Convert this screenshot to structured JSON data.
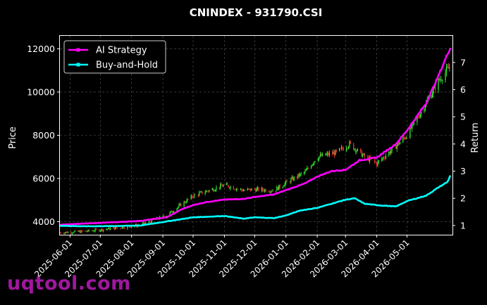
{
  "chart_data": {
    "type": "line",
    "title": "CNINDEX - 931790.CSI",
    "ylabel_left": "Price",
    "ylabel_right": "Return",
    "x_ticks": [
      "2025-06-01",
      "2025-07-01",
      "2025-08-01",
      "2025-09-01",
      "2025-10-01",
      "2025-11-01",
      "2025-12-01",
      "2026-01-01",
      "2026-02-01",
      "2026-03-01",
      "2026-04-01",
      "2026-05-01"
    ],
    "y_left_ticks": [
      4000,
      6000,
      8000,
      10000,
      12000
    ],
    "y_right_ticks": [
      1,
      2,
      3,
      4,
      5,
      6,
      7
    ],
    "ylim_left": [
      3400,
      12600
    ],
    "ylim_right": [
      0.66,
      7.98
    ],
    "xlim": [
      "2025-05-22",
      "2026-06-15"
    ],
    "grid": true,
    "legend_position": "top-left",
    "series": [
      {
        "name": "AI Strategy",
        "axis": "right",
        "color": "#ff00ff",
        "points": [
          [
            "2025-05-22",
            1.03
          ],
          [
            "2025-06-15",
            1.07
          ],
          [
            "2025-07-15",
            1.12
          ],
          [
            "2025-08-10",
            1.17
          ],
          [
            "2025-08-25",
            1.25
          ],
          [
            "2025-09-05",
            1.3
          ],
          [
            "2025-09-20",
            1.6
          ],
          [
            "2025-10-01",
            1.75
          ],
          [
            "2025-10-15",
            1.87
          ],
          [
            "2025-11-01",
            1.95
          ],
          [
            "2025-11-20",
            1.98
          ],
          [
            "2025-12-01",
            2.05
          ],
          [
            "2025-12-20",
            2.14
          ],
          [
            "2026-01-01",
            2.3
          ],
          [
            "2026-01-20",
            2.55
          ],
          [
            "2026-02-01",
            2.8
          ],
          [
            "2026-02-15",
            3.0
          ],
          [
            "2026-03-01",
            3.05
          ],
          [
            "2026-03-15",
            3.4
          ],
          [
            "2026-04-01",
            3.5
          ],
          [
            "2026-04-20",
            4.0
          ],
          [
            "2026-05-01",
            4.5
          ],
          [
            "2026-05-20",
            5.5
          ],
          [
            "2026-06-01",
            6.5
          ],
          [
            "2026-06-10",
            7.3
          ],
          [
            "2026-06-13",
            7.55
          ]
        ]
      },
      {
        "name": "Buy-and-Hold",
        "axis": "right",
        "color": "#00ffff",
        "points": [
          [
            "2025-05-22",
            0.99
          ],
          [
            "2025-06-15",
            0.97
          ],
          [
            "2025-07-15",
            0.98
          ],
          [
            "2025-08-10",
            1.0
          ],
          [
            "2025-09-05",
            1.15
          ],
          [
            "2025-10-01",
            1.3
          ],
          [
            "2025-11-01",
            1.35
          ],
          [
            "2025-11-20",
            1.25
          ],
          [
            "2025-12-01",
            1.3
          ],
          [
            "2025-12-20",
            1.27
          ],
          [
            "2026-01-01",
            1.37
          ],
          [
            "2026-01-15",
            1.55
          ],
          [
            "2026-02-01",
            1.65
          ],
          [
            "2026-03-01",
            1.95
          ],
          [
            "2026-03-10",
            2.0
          ],
          [
            "2026-03-20",
            1.8
          ],
          [
            "2026-04-01",
            1.75
          ],
          [
            "2026-04-20",
            1.7
          ],
          [
            "2026-05-01",
            1.9
          ],
          [
            "2026-05-20",
            2.1
          ],
          [
            "2026-06-01",
            2.4
          ],
          [
            "2026-06-10",
            2.6
          ],
          [
            "2026-06-13",
            2.85
          ]
        ]
      }
    ],
    "price_series": {
      "axis": "left",
      "up_color": "#33ff33",
      "down_color": "#ff3333",
      "points": [
        [
          "2025-05-22",
          3500
        ],
        [
          "2025-06-15",
          3550
        ],
        [
          "2025-07-15",
          3700
        ],
        [
          "2025-08-10",
          3850
        ],
        [
          "2025-09-05",
          4300
        ],
        [
          "2025-10-01",
          5200
        ],
        [
          "2025-10-20",
          5500
        ],
        [
          "2025-11-01",
          5700
        ],
        [
          "2025-11-20",
          5450
        ],
        [
          "2025-12-01",
          5500
        ],
        [
          "2025-12-20",
          5450
        ],
        [
          "2026-01-01",
          5800
        ],
        [
          "2026-01-20",
          6300
        ],
        [
          "2026-02-01",
          7000
        ],
        [
          "2026-02-20",
          7200
        ],
        [
          "2026-03-05",
          7600
        ],
        [
          "2026-03-20",
          7000
        ],
        [
          "2026-04-01",
          6700
        ],
        [
          "2026-04-20",
          7500
        ],
        [
          "2026-05-01",
          8000
        ],
        [
          "2026-05-20",
          9500
        ],
        [
          "2026-06-01",
          10500
        ],
        [
          "2026-06-13",
          11200
        ]
      ]
    }
  },
  "watermark": "uqtool.com"
}
